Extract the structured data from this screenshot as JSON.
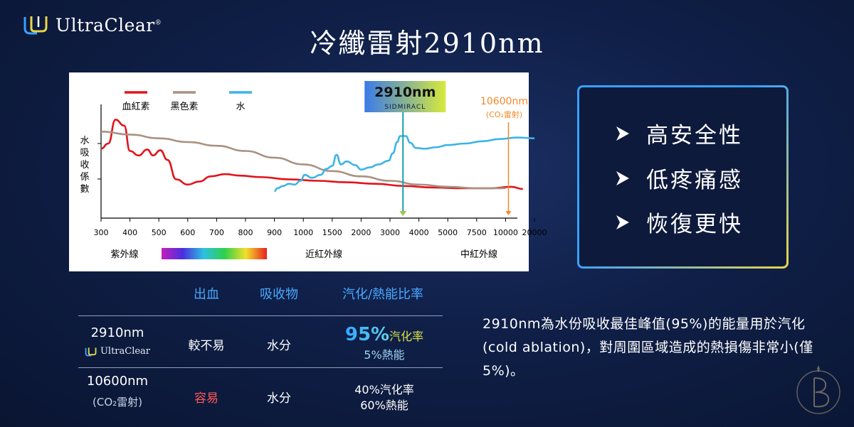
{
  "brand": {
    "name": "UltraClear",
    "reg": "®"
  },
  "title": "冷纖雷射2910nm",
  "colors": {
    "blood": "#e0151b",
    "melanin": "#a89282",
    "water": "#3db4e6",
    "accent": "#49a8ff"
  },
  "benefits": [
    "高安全性",
    "低疼痛感",
    "恢復更快"
  ],
  "table": {
    "headers": [
      "出血",
      "吸收物",
      "汽化/熱能比率"
    ],
    "rows": [
      {
        "wavelength": "2910nm",
        "brand": "UltraClear",
        "bleeding": "較不易",
        "absorber": "水分",
        "vapor_pct": "95%",
        "vapor_label": "汽化率",
        "heat": "5%熱能"
      },
      {
        "wavelength": "10600nm",
        "note": "(CO₂雷射)",
        "bleeding": "容易",
        "absorber": "水分",
        "vapor": "40%汽化率",
        "heat": "60%熱能"
      }
    ]
  },
  "description": "2910nm為水份吸收最佳峰值(95%)的能量用於汽化(cold ablation)，對周圍區域造成的熱損傷非常小(僅5%)。",
  "chart_data": {
    "type": "line",
    "ylabel": "水吸收係數",
    "x_ticks": [
      "300",
      "400",
      "500",
      "600",
      "700",
      "800",
      "900",
      "1000",
      "1500",
      "2000",
      "3000",
      "4000",
      "5000",
      "7500",
      "10000",
      "20000"
    ],
    "series": [
      {
        "name": "血紅素",
        "color": "#e0151b",
        "points": [
          [
            0,
            4.65
          ],
          [
            0.25,
            5.0
          ],
          [
            0.5,
            6.6
          ],
          [
            0.8,
            6.2
          ],
          [
            1.0,
            4.5
          ],
          [
            1.3,
            4.2
          ],
          [
            1.6,
            4.6
          ],
          [
            1.8,
            4.2
          ],
          [
            2.05,
            4.55
          ],
          [
            2.3,
            3.9
          ],
          [
            2.6,
            2.6
          ],
          [
            3.0,
            2.25
          ],
          [
            3.4,
            2.45
          ],
          [
            3.8,
            2.8
          ],
          [
            4.3,
            2.95
          ],
          [
            4.8,
            2.85
          ],
          [
            5.5,
            2.75
          ],
          [
            6.5,
            2.6
          ],
          [
            7.5,
            2.5
          ],
          [
            8.5,
            2.4
          ],
          [
            9.5,
            2.3
          ],
          [
            10.5,
            2.15
          ],
          [
            11.5,
            2.05
          ],
          [
            12.5,
            2.0
          ],
          [
            13.5,
            2.0
          ],
          [
            14.2,
            2.1
          ],
          [
            14.6,
            1.95
          ]
        ]
      },
      {
        "name": "黑色素",
        "color": "#a89282",
        "points": [
          [
            0,
            5.8
          ],
          [
            1,
            5.6
          ],
          [
            2,
            5.35
          ],
          [
            3,
            5.1
          ],
          [
            4,
            4.85
          ],
          [
            5,
            4.5
          ],
          [
            6,
            4.05
          ],
          [
            7,
            3.6
          ],
          [
            8,
            3.15
          ],
          [
            9,
            2.8
          ],
          [
            10,
            2.5
          ],
          [
            11,
            2.25
          ],
          [
            12,
            2.1
          ],
          [
            13,
            2.0
          ],
          [
            14,
            2.0
          ]
        ]
      },
      {
        "name": "水",
        "color": "#3db4e6",
        "points": [
          [
            6.0,
            1.8
          ],
          [
            6.1,
            2.0
          ],
          [
            6.3,
            2.15
          ],
          [
            6.5,
            2.3
          ],
          [
            6.7,
            2.25
          ],
          [
            6.9,
            2.5
          ],
          [
            7.05,
            2.9
          ],
          [
            7.3,
            2.7
          ],
          [
            7.6,
            2.9
          ],
          [
            7.8,
            3.3
          ],
          [
            8.0,
            3.5
          ],
          [
            8.15,
            4.25
          ],
          [
            8.3,
            3.6
          ],
          [
            8.5,
            3.8
          ],
          [
            8.8,
            3.55
          ],
          [
            9.0,
            3.25
          ],
          [
            9.3,
            3.4
          ],
          [
            9.6,
            3.6
          ],
          [
            9.95,
            3.85
          ],
          [
            10.1,
            4.35
          ],
          [
            10.25,
            5.1
          ],
          [
            10.35,
            5.5
          ],
          [
            10.55,
            5.5
          ],
          [
            10.7,
            5.05
          ],
          [
            10.9,
            4.7
          ],
          [
            11.2,
            4.65
          ],
          [
            11.6,
            4.75
          ],
          [
            12.0,
            4.9
          ],
          [
            12.6,
            5.0
          ],
          [
            13.2,
            5.15
          ],
          [
            13.8,
            5.3
          ],
          [
            14.4,
            5.4
          ],
          [
            15.0,
            5.35
          ]
        ]
      }
    ],
    "markers": [
      {
        "label": "2910nm",
        "sub": "SIDMIRACL",
        "x": 10.45
      },
      {
        "label": "10600nm",
        "sub": "(CO₂雷射)",
        "x": 14.1
      }
    ],
    "spectrum_labels": [
      "紫外線",
      "近紅外線",
      "中紅外線"
    ]
  }
}
